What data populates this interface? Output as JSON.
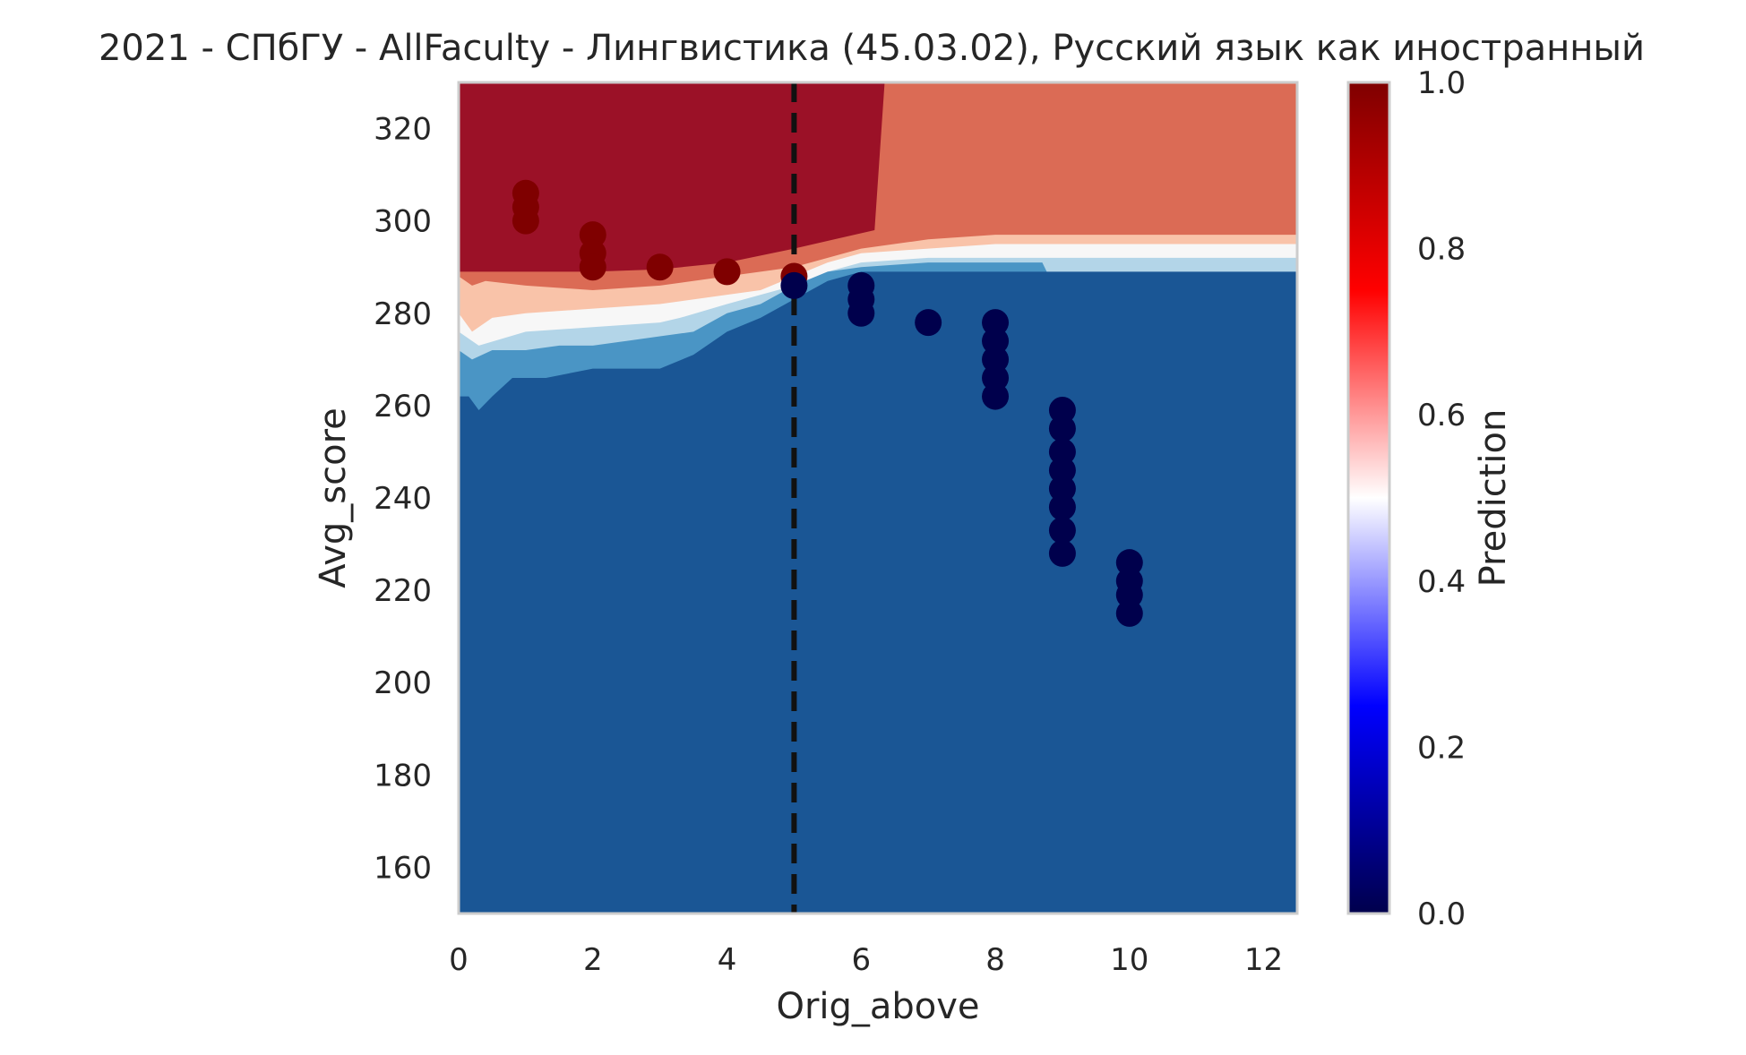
{
  "chart_data": {
    "type": "scatter",
    "title": "2021 - СПбГУ - AllFaculty - Лингвистика (45.03.02), Русский язык как иностранный",
    "xlabel": "Orig_above",
    "ylabel": "Avg_score",
    "xlim": [
      0,
      12.5
    ],
    "ylim": [
      150,
      330
    ],
    "xticks": [
      0,
      2,
      4,
      6,
      8,
      10,
      12
    ],
    "yticks": [
      160,
      180,
      200,
      220,
      240,
      260,
      280,
      300,
      320
    ],
    "threshold_x": 5,
    "grid": false,
    "background": {
      "type": "contourf",
      "description_levels": [
        0.0,
        0.2,
        0.4,
        0.5,
        0.6,
        0.8,
        1.0
      ],
      "regions": [
        {
          "level": 0.1,
          "color": "#1a5695"
        },
        {
          "level": 0.3,
          "color": "#4a95c5"
        },
        {
          "level": 0.45,
          "color": "#b3d5e8"
        },
        {
          "level": 0.55,
          "color": "#f7f7f7"
        },
        {
          "level": 0.65,
          "color": "#f9c3a9"
        },
        {
          "level": 0.75,
          "color": "#db6b55"
        },
        {
          "level": 0.9,
          "color": "#9b1127"
        }
      ]
    },
    "colorbar": {
      "label": "Prediction",
      "ticks": [
        "0.0",
        "0.2",
        "0.4",
        "0.6",
        "0.8",
        "1.0"
      ],
      "colormap": "seismic"
    },
    "points": [
      {
        "x": 1,
        "y": 306,
        "label": 1
      },
      {
        "x": 1,
        "y": 303,
        "label": 1
      },
      {
        "x": 1,
        "y": 300,
        "label": 1
      },
      {
        "x": 2,
        "y": 297,
        "label": 1
      },
      {
        "x": 2,
        "y": 293,
        "label": 1
      },
      {
        "x": 2,
        "y": 290,
        "label": 1
      },
      {
        "x": 3,
        "y": 290,
        "label": 1
      },
      {
        "x": 4,
        "y": 289,
        "label": 1
      },
      {
        "x": 5,
        "y": 288,
        "label": 1
      },
      {
        "x": 5,
        "y": 286,
        "label": 0
      },
      {
        "x": 6,
        "y": 286,
        "label": 0
      },
      {
        "x": 6,
        "y": 283,
        "label": 0
      },
      {
        "x": 6,
        "y": 280,
        "label": 0
      },
      {
        "x": 7,
        "y": 278,
        "label": 0
      },
      {
        "x": 8,
        "y": 278,
        "label": 0
      },
      {
        "x": 8,
        "y": 274,
        "label": 0
      },
      {
        "x": 8,
        "y": 270,
        "label": 0
      },
      {
        "x": 8,
        "y": 266,
        "label": 0
      },
      {
        "x": 8,
        "y": 262,
        "label": 0
      },
      {
        "x": 9,
        "y": 259,
        "label": 0
      },
      {
        "x": 9,
        "y": 255,
        "label": 0
      },
      {
        "x": 9,
        "y": 250,
        "label": 0
      },
      {
        "x": 9,
        "y": 246,
        "label": 0
      },
      {
        "x": 9,
        "y": 242,
        "label": 0
      },
      {
        "x": 9,
        "y": 238,
        "label": 0
      },
      {
        "x": 9,
        "y": 233,
        "label": 0
      },
      {
        "x": 9,
        "y": 228,
        "label": 0
      },
      {
        "x": 10,
        "y": 226,
        "label": 0
      },
      {
        "x": 10,
        "y": 222,
        "label": 0
      },
      {
        "x": 10,
        "y": 219,
        "label": 0
      },
      {
        "x": 10,
        "y": 215,
        "label": 0
      }
    ],
    "point_colors": {
      "1": "#7f0000",
      "0": "#00004c"
    }
  }
}
